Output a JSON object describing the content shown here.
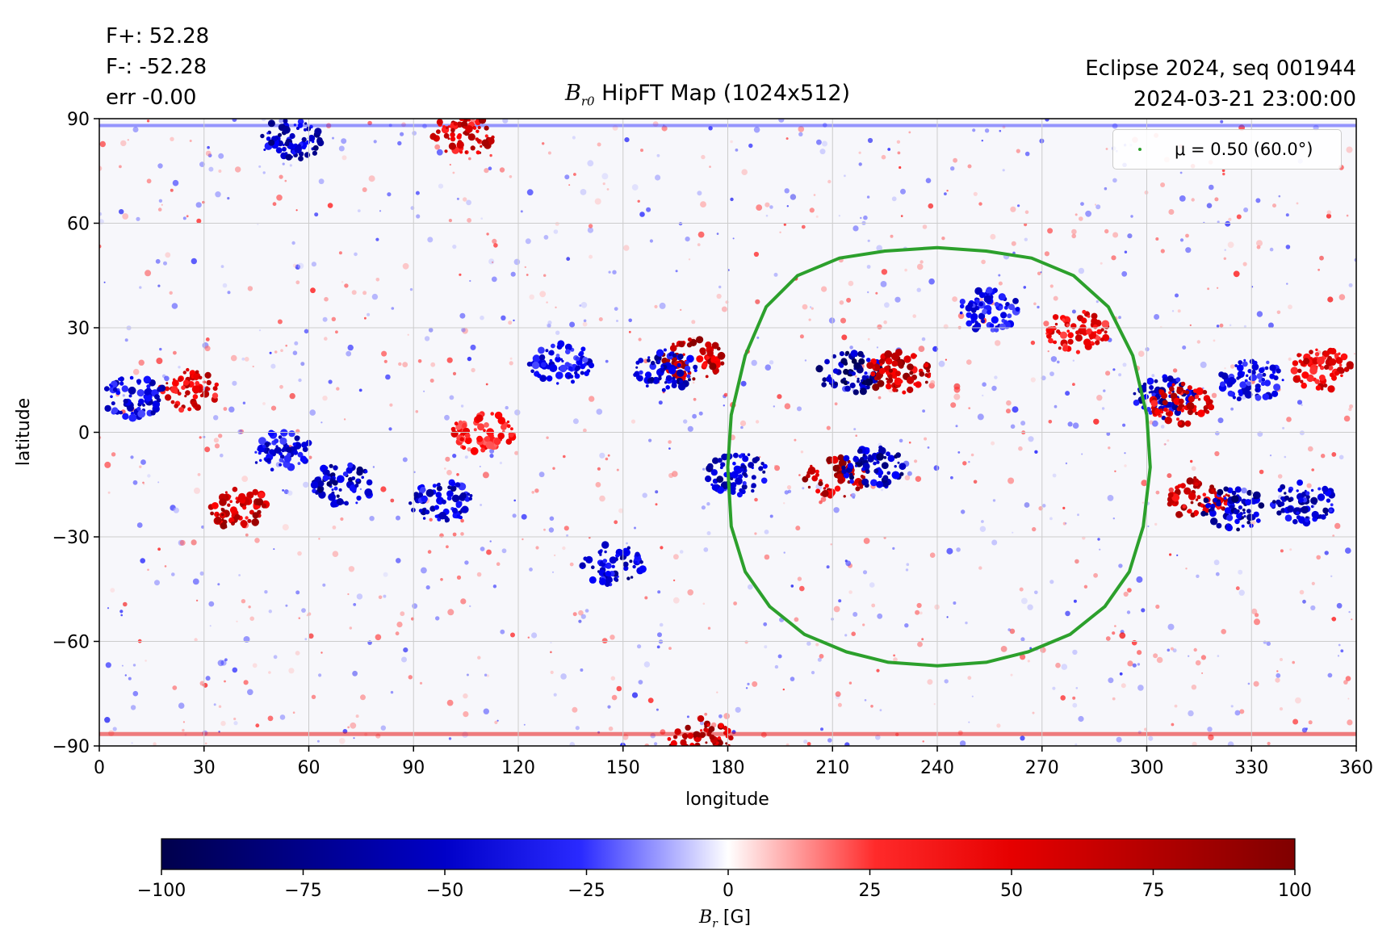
{
  "annotations": {
    "flux_pos": "F+: 52.28",
    "flux_neg": "F-: -52.28",
    "err": "err -0.00",
    "event": "Eclipse 2024, seq 001944",
    "datetime": "2024-03-21 23:00:00"
  },
  "title": {
    "symbol": "B",
    "subscript": "r0",
    "text": "HipFT Map (1024x512)"
  },
  "legend": {
    "label": "μ = 0.50 (60.0°)"
  },
  "colors": {
    "negative": "#0000ff",
    "negative_dark": "#00004c",
    "positive": "#ff0000",
    "positive_dark": "#800000",
    "contour": "#2ca02c",
    "grid": "#cccccc"
  },
  "chart_data": {
    "type": "heatmap",
    "title": "B_r0 HipFT Map (1024x512)",
    "xlabel": "longitude",
    "ylabel": "latitude",
    "xlim": [
      0,
      360
    ],
    "ylim": [
      -90,
      90
    ],
    "xticks": [
      0,
      30,
      60,
      90,
      120,
      150,
      180,
      210,
      240,
      270,
      300,
      330,
      360
    ],
    "yticks": [
      90,
      60,
      30,
      0,
      -30,
      -60,
      -90
    ],
    "ytick_labels": [
      "90",
      "60",
      "30",
      "0",
      "−30",
      "−60",
      "−90"
    ],
    "grid": true,
    "colormap": "seismic",
    "color_range": [
      -100,
      100
    ],
    "colorbar": {
      "ticks": [
        -100,
        -75,
        -50,
        -25,
        0,
        25,
        50,
        75,
        100
      ],
      "tick_labels": [
        "−100",
        "−75",
        "−50",
        "−25",
        "0",
        "25",
        "50",
        "75",
        "100"
      ],
      "label_symbol": "B",
      "label_subscript": "r",
      "label_unit": "[G]"
    },
    "contour": {
      "name": "μ = 0.50 (60.0°)",
      "color": "#2ca02c",
      "points": [
        [
          240,
          53
        ],
        [
          225,
          52
        ],
        [
          212,
          50
        ],
        [
          200,
          45
        ],
        [
          191,
          36
        ],
        [
          185,
          22
        ],
        [
          181,
          5
        ],
        [
          180,
          -10
        ],
        [
          181,
          -27
        ],
        [
          185,
          -40
        ],
        [
          192,
          -50
        ],
        [
          202,
          -58
        ],
        [
          214,
          -63
        ],
        [
          226,
          -66
        ],
        [
          240,
          -67
        ],
        [
          254,
          -66
        ],
        [
          266,
          -63
        ],
        [
          278,
          -58
        ],
        [
          288,
          -50
        ],
        [
          295,
          -40
        ],
        [
          299,
          -27
        ],
        [
          301,
          -10
        ],
        [
          300,
          5
        ],
        [
          296,
          22
        ],
        [
          289,
          36
        ],
        [
          279,
          45
        ],
        [
          267,
          50
        ],
        [
          254,
          52
        ],
        [
          240,
          53
        ]
      ]
    },
    "flux_regions": [
      {
        "lon": 215,
        "lat": 17,
        "sign": "negative",
        "strength": 95
      },
      {
        "lon": 229,
        "lat": 17,
        "sign": "positive",
        "strength": 90
      },
      {
        "lon": 211,
        "lat": -13,
        "sign": "positive",
        "strength": 90
      },
      {
        "lon": 222,
        "lat": -10,
        "sign": "negative",
        "strength": 85
      },
      {
        "lon": 170,
        "lat": 21,
        "sign": "positive",
        "strength": 90
      },
      {
        "lon": 162,
        "lat": 18,
        "sign": "negative",
        "strength": 80
      },
      {
        "lon": 183,
        "lat": -12,
        "sign": "negative",
        "strength": 80
      },
      {
        "lon": 40,
        "lat": -22,
        "sign": "positive",
        "strength": 85
      },
      {
        "lon": 70,
        "lat": -15,
        "sign": "negative",
        "strength": 85
      },
      {
        "lon": 52,
        "lat": -5,
        "sign": "negative",
        "strength": 70
      },
      {
        "lon": 25,
        "lat": 12,
        "sign": "positive",
        "strength": 75
      },
      {
        "lon": 10,
        "lat": 10,
        "sign": "negative",
        "strength": 70
      },
      {
        "lon": 98,
        "lat": -20,
        "sign": "negative",
        "strength": 75
      },
      {
        "lon": 147,
        "lat": -38,
        "sign": "negative",
        "strength": 80
      },
      {
        "lon": 305,
        "lat": 10,
        "sign": "negative",
        "strength": 80
      },
      {
        "lon": 310,
        "lat": 8,
        "sign": "positive",
        "strength": 80
      },
      {
        "lon": 315,
        "lat": -19,
        "sign": "positive",
        "strength": 85
      },
      {
        "lon": 325,
        "lat": -22,
        "sign": "negative",
        "strength": 85
      },
      {
        "lon": 345,
        "lat": -20,
        "sign": "negative",
        "strength": 80
      },
      {
        "lon": 350,
        "lat": 18,
        "sign": "positive",
        "strength": 75
      },
      {
        "lon": 330,
        "lat": 15,
        "sign": "negative",
        "strength": 65
      },
      {
        "lon": 132,
        "lat": 20,
        "sign": "negative",
        "strength": 65
      },
      {
        "lon": 110,
        "lat": 0,
        "sign": "positive",
        "strength": 60
      },
      {
        "lon": 104,
        "lat": 85,
        "sign": "positive",
        "strength": 80
      },
      {
        "lon": 55,
        "lat": 84,
        "sign": "negative",
        "strength": 80
      },
      {
        "lon": 280,
        "lat": 29,
        "sign": "positive",
        "strength": 70
      },
      {
        "lon": 255,
        "lat": 35,
        "sign": "negative",
        "strength": 65
      },
      {
        "lon": 172,
        "lat": -88,
        "sign": "positive",
        "strength": 90
      }
    ]
  }
}
